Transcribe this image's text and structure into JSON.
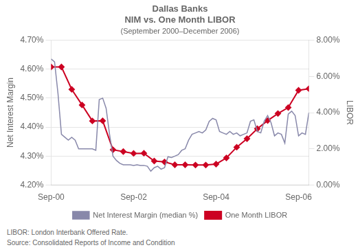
{
  "chart_data": {
    "type": "line",
    "title": [
      "Dallas Banks",
      "NIM vs. One Month LIBOR"
    ],
    "subtitle": "(September 2000–December 2006)",
    "annotations": [
      "LIBOR: London Interbank Offered Rate.",
      "Source: Consolidated Reports of Income and Condition"
    ],
    "ylabel": "Net Interest Margin",
    "y2label": "LIBOR",
    "xlim": [
      0,
      75
    ],
    "xticks": [
      {
        "value": 0,
        "label": "Sep-00"
      },
      {
        "value": 24,
        "label": "Sep-02"
      },
      {
        "value": 48,
        "label": "Sep-04"
      },
      {
        "value": 72,
        "label": "Sep-06"
      }
    ],
    "ylim": [
      4.2,
      4.7
    ],
    "yticks": [
      {
        "value": 4.2,
        "label": "4.20%"
      },
      {
        "value": 4.3,
        "label": "4.30%"
      },
      {
        "value": 4.4,
        "label": "4.40%"
      },
      {
        "value": 4.5,
        "label": "4.50%"
      },
      {
        "value": 4.6,
        "label": "4.60%"
      },
      {
        "value": 4.7,
        "label": "4.70%"
      }
    ],
    "y2lim": [
      0.0,
      8.0
    ],
    "y2ticks": [
      {
        "value": 0.0,
        "label": "0.00%"
      },
      {
        "value": 2.0,
        "label": "2.00%"
      },
      {
        "value": 4.0,
        "label": "4.00%"
      },
      {
        "value": 6.0,
        "label": "6.00%"
      },
      {
        "value": 8.0,
        "label": "8.00%"
      }
    ],
    "grid": true,
    "legend": "bottom",
    "series": [
      {
        "name": "Net Interest Margin (median %)",
        "color": "#8888aa",
        "marker": "none",
        "line_style": "solid",
        "x": [
          0,
          1,
          2,
          3,
          4,
          5,
          6,
          7,
          8,
          9,
          10,
          11,
          12,
          13,
          14,
          15,
          16,
          17,
          18,
          19,
          20,
          21,
          22,
          23,
          24,
          25,
          26,
          27,
          28,
          29,
          30,
          31,
          32,
          33,
          34,
          35,
          36,
          37,
          38,
          39,
          40,
          41,
          42,
          43,
          44,
          45,
          46,
          47,
          48,
          49,
          50,
          51,
          52,
          53,
          54,
          55,
          56,
          57,
          58,
          59,
          60,
          61,
          62,
          63,
          64,
          65,
          66,
          67,
          68,
          69,
          70,
          71,
          72,
          73,
          74,
          75
        ],
        "values": [
          4.635,
          4.625,
          4.515,
          4.375,
          4.365,
          4.355,
          4.365,
          4.355,
          4.325,
          4.325,
          4.325,
          4.325,
          4.325,
          4.32,
          4.495,
          4.5,
          4.465,
          4.375,
          4.3,
          4.285,
          4.275,
          4.27,
          4.27,
          4.27,
          4.268,
          4.27,
          4.268,
          4.268,
          4.265,
          4.248,
          4.26,
          4.265,
          4.255,
          4.26,
          4.298,
          4.295,
          4.3,
          4.305,
          4.32,
          4.325,
          4.355,
          4.375,
          4.38,
          4.385,
          4.38,
          4.39,
          4.42,
          4.43,
          4.425,
          4.385,
          4.38,
          4.375,
          4.385,
          4.375,
          4.38,
          4.37,
          4.375,
          4.38,
          4.42,
          4.425,
          4.385,
          4.38,
          4.42,
          4.44,
          4.415,
          4.37,
          4.38,
          4.375,
          4.345,
          4.445,
          4.455,
          4.44,
          4.37,
          4.38,
          4.375,
          4.45
        ]
      },
      {
        "name": "One Month LIBOR",
        "color": "#cc0022",
        "marker": "diamond",
        "line_style": "solid",
        "axis": "y2",
        "x": [
          0,
          3,
          6,
          9,
          12,
          15,
          18,
          21,
          24,
          27,
          30,
          33,
          36,
          39,
          42,
          45,
          48,
          51,
          54,
          57,
          60,
          63,
          66,
          69,
          72,
          75
        ],
        "values": [
          6.52,
          6.52,
          5.28,
          4.42,
          3.54,
          3.55,
          1.95,
          1.85,
          1.75,
          1.76,
          1.33,
          1.28,
          1.12,
          1.12,
          1.11,
          1.11,
          1.16,
          1.5,
          2.09,
          2.56,
          3.11,
          3.56,
          3.95,
          4.28,
          5.23,
          5.32
        ]
      }
    ]
  }
}
